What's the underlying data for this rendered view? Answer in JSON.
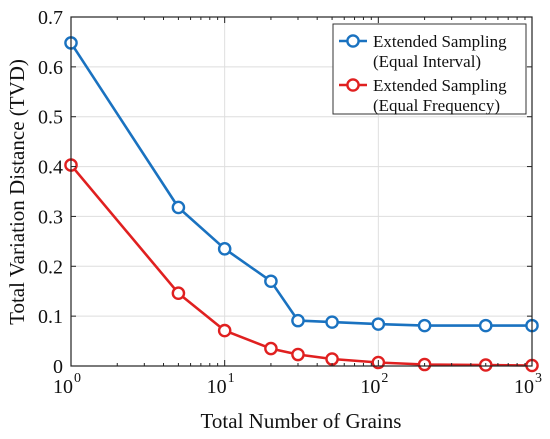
{
  "chart_data": {
    "type": "line",
    "xscale": "log",
    "xlim": [
      1,
      1000
    ],
    "ylim": [
      0,
      0.7
    ],
    "xlabel": "Total Number of Grains",
    "ylabel": "Total Variation Distance (TVD)",
    "grid": true,
    "legend_position": "top-right",
    "x_ticks": [
      {
        "value": 1,
        "base": "10",
        "exp": "0"
      },
      {
        "value": 10,
        "base": "10",
        "exp": "1"
      },
      {
        "value": 100,
        "base": "10",
        "exp": "2"
      },
      {
        "value": 1000,
        "base": "10",
        "exp": "3"
      }
    ],
    "y_ticks": [
      {
        "value": 0,
        "label": "0"
      },
      {
        "value": 0.1,
        "label": "0.1"
      },
      {
        "value": 0.2,
        "label": "0.2"
      },
      {
        "value": 0.3,
        "label": "0.3"
      },
      {
        "value": 0.4,
        "label": "0.4"
      },
      {
        "value": 0.5,
        "label": "0.5"
      },
      {
        "value": 0.6,
        "label": "0.6"
      },
      {
        "value": 0.7,
        "label": "0.7"
      }
    ],
    "series": [
      {
        "name_lines": [
          "Extended Sampling",
          "(Equal Interval)"
        ],
        "color": "#1a72c0",
        "x": [
          1,
          5,
          10,
          20,
          30,
          50,
          100,
          200,
          500,
          1000
        ],
        "y": [
          0.648,
          0.318,
          0.235,
          0.17,
          0.091,
          0.088,
          0.084,
          0.081,
          0.081,
          0.081
        ]
      },
      {
        "name_lines": [
          "Extended Sampling",
          "(Equal Frequency)"
        ],
        "color": "#e02020",
        "x": [
          1,
          5,
          10,
          20,
          30,
          50,
          100,
          200,
          500,
          1000
        ],
        "y": [
          0.403,
          0.146,
          0.071,
          0.035,
          0.023,
          0.014,
          0.007,
          0.003,
          0.002,
          0.001
        ]
      }
    ]
  }
}
